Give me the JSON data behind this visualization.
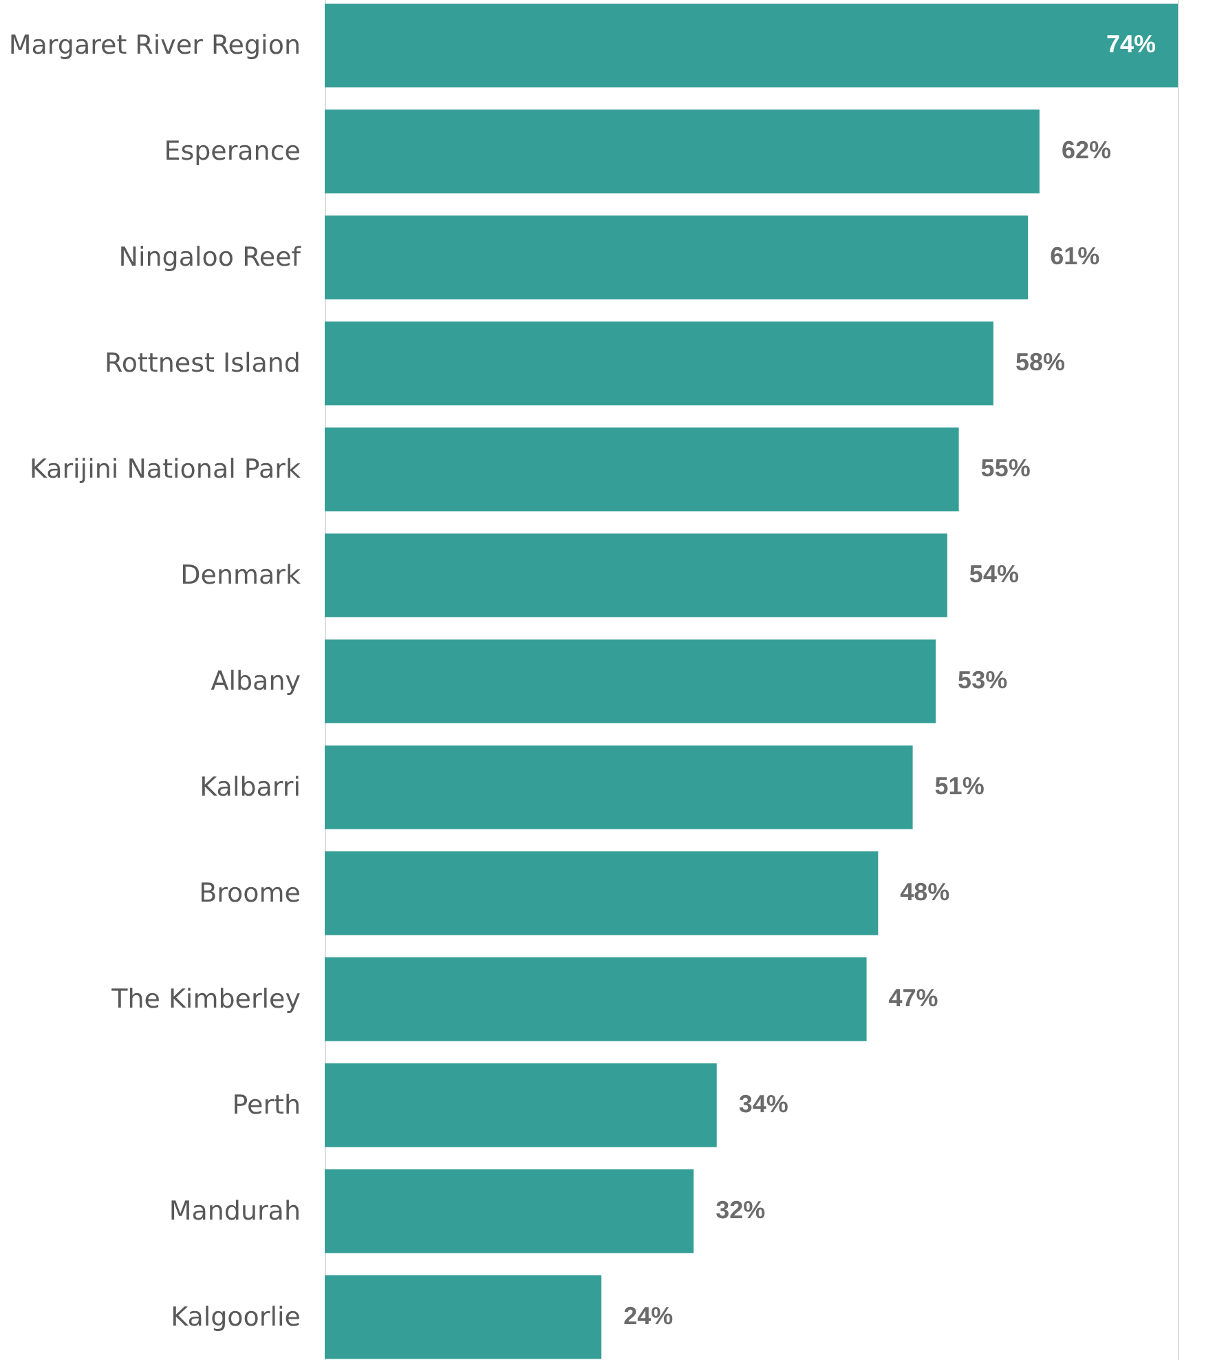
{
  "chart_data": {
    "type": "bar",
    "orientation": "horizontal",
    "categories": [
      "Margaret River Region",
      "Esperance",
      "Ningaloo Reef",
      "Rottnest Island",
      "Karijini National Park",
      "Denmark",
      "Albany",
      "Kalbarri",
      "Broome",
      "The Kimberley",
      "Perth",
      "Mandurah",
      "Kalgoorlie"
    ],
    "values": [
      74,
      62,
      61,
      58,
      55,
      54,
      53,
      51,
      48,
      47,
      34,
      32,
      24
    ],
    "value_labels": [
      "74%",
      "62%",
      "61%",
      "58%",
      "55%",
      "54%",
      "53%",
      "51%",
      "48%",
      "47%",
      "34%",
      "32%",
      "24%"
    ],
    "color": "#359e96"
  }
}
